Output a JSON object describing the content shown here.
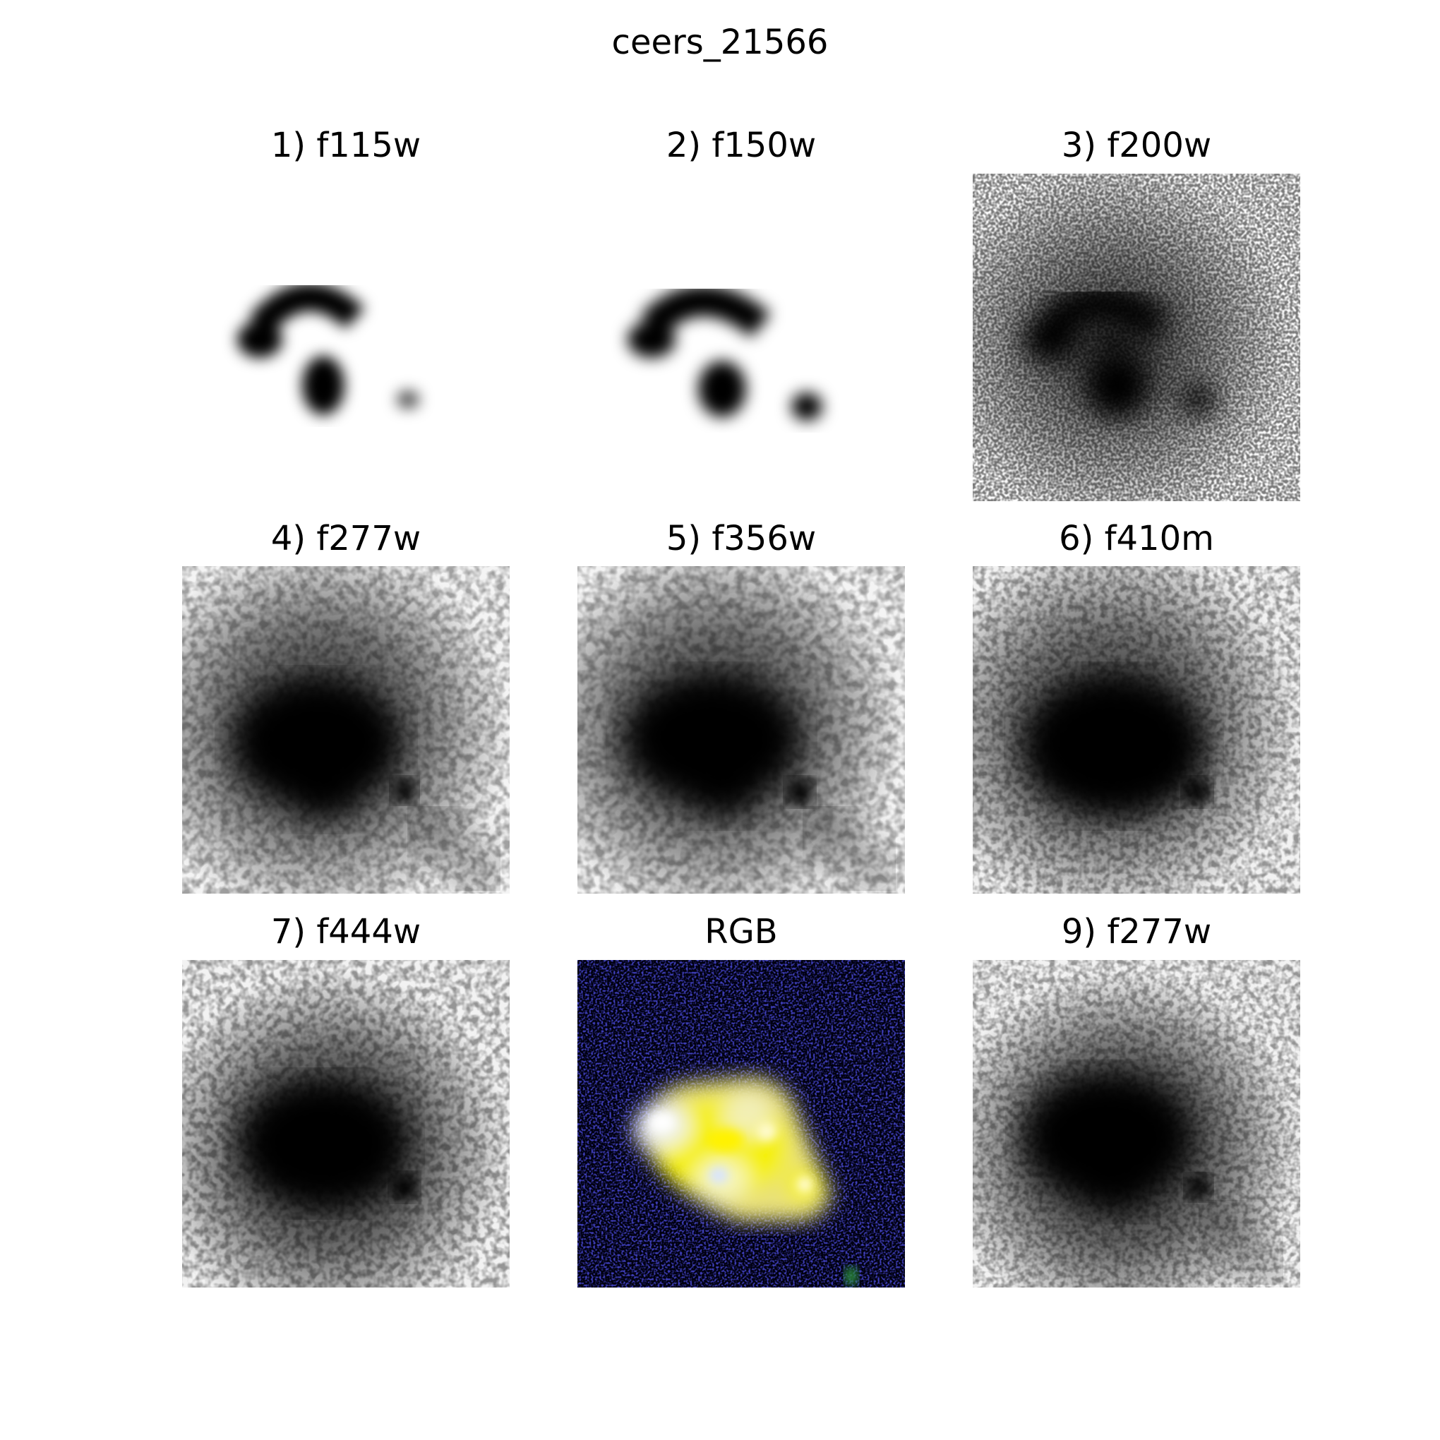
{
  "figure": {
    "title": "ceers_21566"
  },
  "panels": [
    {
      "label": "1) f115w",
      "kind": "grayscale-band",
      "noise": "high"
    },
    {
      "label": "2) f150w",
      "kind": "grayscale-band",
      "noise": "high"
    },
    {
      "label": "3) f200w",
      "kind": "grayscale-band",
      "noise": "medium"
    },
    {
      "label": "4) f277w",
      "kind": "grayscale-band",
      "noise": "low"
    },
    {
      "label": "5) f356w",
      "kind": "grayscale-band",
      "noise": "low"
    },
    {
      "label": "6) f410m",
      "kind": "grayscale-band",
      "noise": "low"
    },
    {
      "label": "7) f444w",
      "kind": "grayscale-band",
      "noise": "low"
    },
    {
      "label": "RGB",
      "kind": "color-composite",
      "noise": "low"
    },
    {
      "label": "9) f277w",
      "kind": "grayscale-band",
      "noise": "low"
    }
  ],
  "colors": {
    "background": "#ffffff",
    "sky_light": "#ffffff",
    "source_dark": "#000000",
    "rgb_sky": "#000010",
    "rgb_core": "#f5f000",
    "rgb_highlight": "#fffbd0",
    "rgb_knot_blue": "#d8e4ff"
  }
}
